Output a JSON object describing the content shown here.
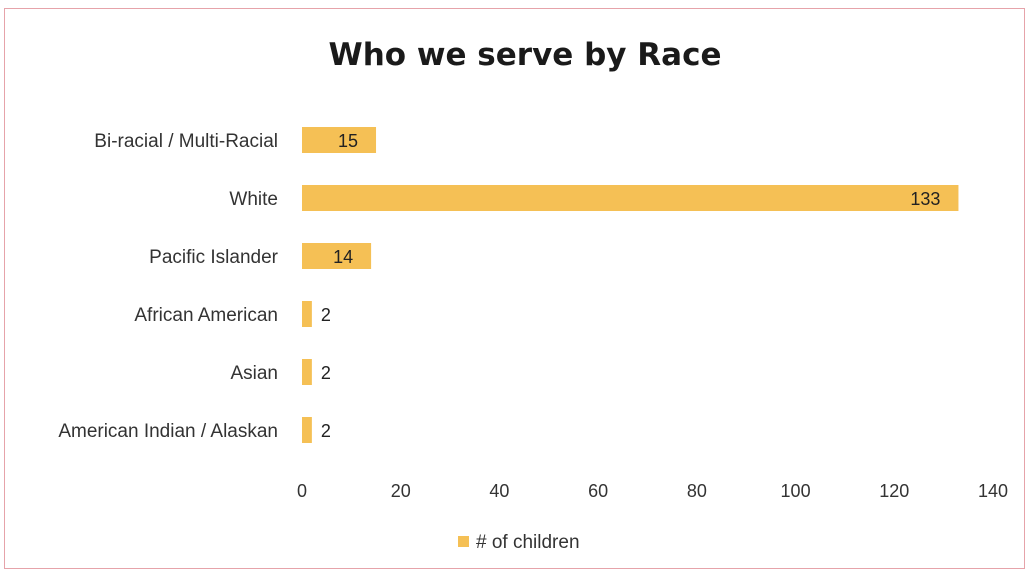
{
  "chart_data": {
    "type": "bar",
    "orientation": "horizontal",
    "title": "Who we serve by Race",
    "categories": [
      "Bi-racial / Multi-Racial",
      "White",
      "Pacific Islander",
      "African American",
      "Asian",
      "American Indian / Alaskan"
    ],
    "series": [
      {
        "name": "# of children",
        "values": [
          15,
          133,
          14,
          2,
          2,
          2
        ],
        "color": "#f5c055"
      }
    ],
    "xlim": [
      0,
      140
    ],
    "xticks": [
      0,
      20,
      40,
      60,
      80,
      100,
      120,
      140
    ],
    "xlabel": "",
    "ylabel": "",
    "grid": false,
    "data_labels": true,
    "legend_position": "bottom"
  },
  "colors": {
    "bar": "#f5c055",
    "frame": "#e6a3aa"
  }
}
